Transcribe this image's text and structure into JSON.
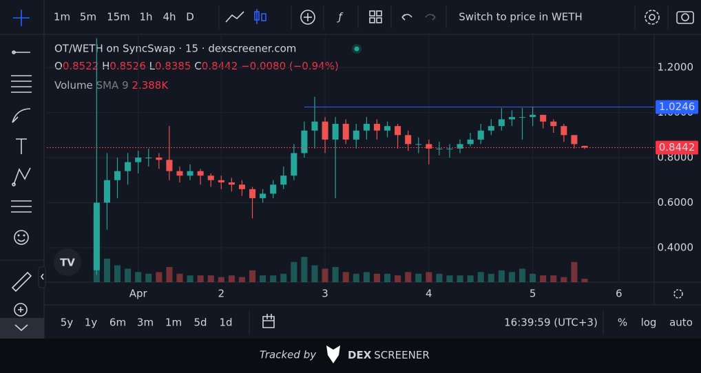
{
  "toolbar": {
    "intervals": [
      "1m",
      "5m",
      "15m",
      "1h",
      "4h",
      "D"
    ],
    "active_index": 2,
    "switch_label": "Switch to price in WETH"
  },
  "legend": {
    "title": "OT/WETH on SyncSwap · 15 · dexscreener.com",
    "ohlc": [
      {
        "label": "O",
        "value": "0.8522"
      },
      {
        "label": "H",
        "value": "0.8526"
      },
      {
        "label": "L",
        "value": "0.8385"
      },
      {
        "label": "C",
        "value": "0.8442"
      }
    ],
    "change": "−0.0080 (−0.94%)",
    "volume": "Volume",
    "sma": "SMA 9",
    "volume_value": "2.388K"
  },
  "chart_data": {
    "type": "candlestick",
    "up_color": "#26a69a",
    "down_color": "#ef5350",
    "x": [
      0.8,
      0.9,
      1.0,
      1.1,
      1.2,
      1.3,
      1.4,
      1.5,
      1.6,
      1.7,
      1.8,
      1.9,
      2.0,
      2.1,
      2.2,
      2.3,
      2.4,
      2.5,
      2.6,
      2.7,
      2.8,
      2.9,
      3.0,
      3.1,
      3.2,
      3.3,
      3.4,
      3.5,
      3.6,
      3.7,
      3.8,
      3.9,
      4.0,
      4.1,
      4.2,
      4.3,
      4.4,
      4.5,
      4.6,
      4.7,
      4.8,
      4.9,
      5.0,
      5.1,
      5.2,
      5.3,
      5.4,
      5.5
    ],
    "open": [
      0.3,
      0.6,
      0.7,
      0.74,
      0.78,
      0.8,
      0.8,
      0.79,
      0.74,
      0.72,
      0.74,
      0.72,
      0.7,
      0.69,
      0.68,
      0.66,
      0.62,
      0.64,
      0.68,
      0.72,
      0.82,
      0.92,
      0.96,
      0.88,
      0.95,
      0.88,
      0.92,
      0.95,
      0.92,
      0.94,
      0.9,
      0.86,
      0.86,
      0.84,
      0.84,
      0.84,
      0.86,
      0.88,
      0.92,
      0.94,
      0.97,
      0.98,
      0.98,
      0.99,
      0.96,
      0.94,
      0.9,
      0.8522
    ],
    "high": [
      1.33,
      0.82,
      0.8,
      0.82,
      0.83,
      0.84,
      0.82,
      0.94,
      0.76,
      0.77,
      0.75,
      0.73,
      0.72,
      0.71,
      0.7,
      0.67,
      0.66,
      0.7,
      0.76,
      0.86,
      0.96,
      1.07,
      0.98,
      0.98,
      0.97,
      0.95,
      0.98,
      0.97,
      0.96,
      0.95,
      0.92,
      0.89,
      0.88,
      0.87,
      0.86,
      0.88,
      0.91,
      0.95,
      0.97,
      1.02,
      1.01,
      1.02,
      1.0246,
      0.99,
      0.97,
      0.95,
      0.9,
      0.8526
    ],
    "low": [
      0.28,
      0.48,
      0.62,
      0.68,
      0.73,
      0.76,
      0.75,
      0.7,
      0.69,
      0.7,
      0.68,
      0.67,
      0.66,
      0.65,
      0.63,
      0.53,
      0.6,
      0.62,
      0.66,
      0.7,
      0.8,
      0.84,
      0.82,
      0.62,
      0.86,
      0.84,
      0.88,
      0.88,
      0.89,
      0.84,
      0.83,
      0.82,
      0.77,
      0.81,
      0.8,
      0.82,
      0.85,
      0.86,
      0.9,
      0.92,
      0.94,
      0.88,
      0.94,
      0.93,
      0.91,
      0.87,
      0.84,
      0.8385
    ],
    "close": [
      0.6,
      0.7,
      0.74,
      0.78,
      0.8,
      0.8,
      0.79,
      0.74,
      0.72,
      0.74,
      0.72,
      0.7,
      0.69,
      0.68,
      0.66,
      0.62,
      0.64,
      0.68,
      0.72,
      0.82,
      0.92,
      0.96,
      0.88,
      0.95,
      0.88,
      0.92,
      0.95,
      0.92,
      0.94,
      0.9,
      0.86,
      0.86,
      0.84,
      0.84,
      0.84,
      0.86,
      0.88,
      0.92,
      0.94,
      0.97,
      0.98,
      0.98,
      0.99,
      0.96,
      0.94,
      0.9,
      0.86,
      0.8442
    ],
    "volume": [
      40,
      14,
      10,
      8,
      6,
      5,
      6,
      9,
      5,
      4,
      4,
      4,
      3,
      4,
      3,
      7,
      4,
      4,
      5,
      12,
      15,
      10,
      8,
      9,
      6,
      5,
      6,
      5,
      5,
      4,
      6,
      5,
      6,
      5,
      4,
      4,
      4,
      6,
      5,
      7,
      6,
      8,
      5,
      4,
      4,
      3,
      12,
      2
    ],
    "y2lim": [
      0,
      45
    ],
    "xlim": [
      0.32,
      6.17
    ],
    "xticks": [
      {
        "value": 1.2,
        "label": "Apr"
      },
      2,
      3,
      4,
      5,
      {
        "value": 5.83,
        "label": "6"
      }
    ],
    "ylim": [
      0.247,
      1.347
    ],
    "yticks": [
      {
        "value": 0.4,
        "label": "0.4000"
      },
      {
        "value": 0.6,
        "label": "0.6000"
      },
      {
        "value": 0.8,
        "label": "0.8000"
      },
      {
        "value": 1.0,
        "label": "1.0000"
      },
      {
        "value": 1.2,
        "label": "1.2000"
      }
    ],
    "grid": true,
    "lines": [
      {
        "value": 1.0246,
        "start": 2.8,
        "color": "#2962ff",
        "style": "solid"
      },
      {
        "value": 0.8442,
        "start": 0.32,
        "color": "#f23645",
        "style": "dotted"
      }
    ]
  },
  "range_bar": {
    "ranges": [
      "5y",
      "1y",
      "6m",
      "3m",
      "1m",
      "5d",
      "1d"
    ],
    "clock": "16:39:59 (UTC+3)",
    "options": [
      "%",
      "log",
      "auto"
    ]
  },
  "footer": {
    "tracked": "Tracked by",
    "brand_bold": "DEX",
    "brand": "SCREENER"
  }
}
